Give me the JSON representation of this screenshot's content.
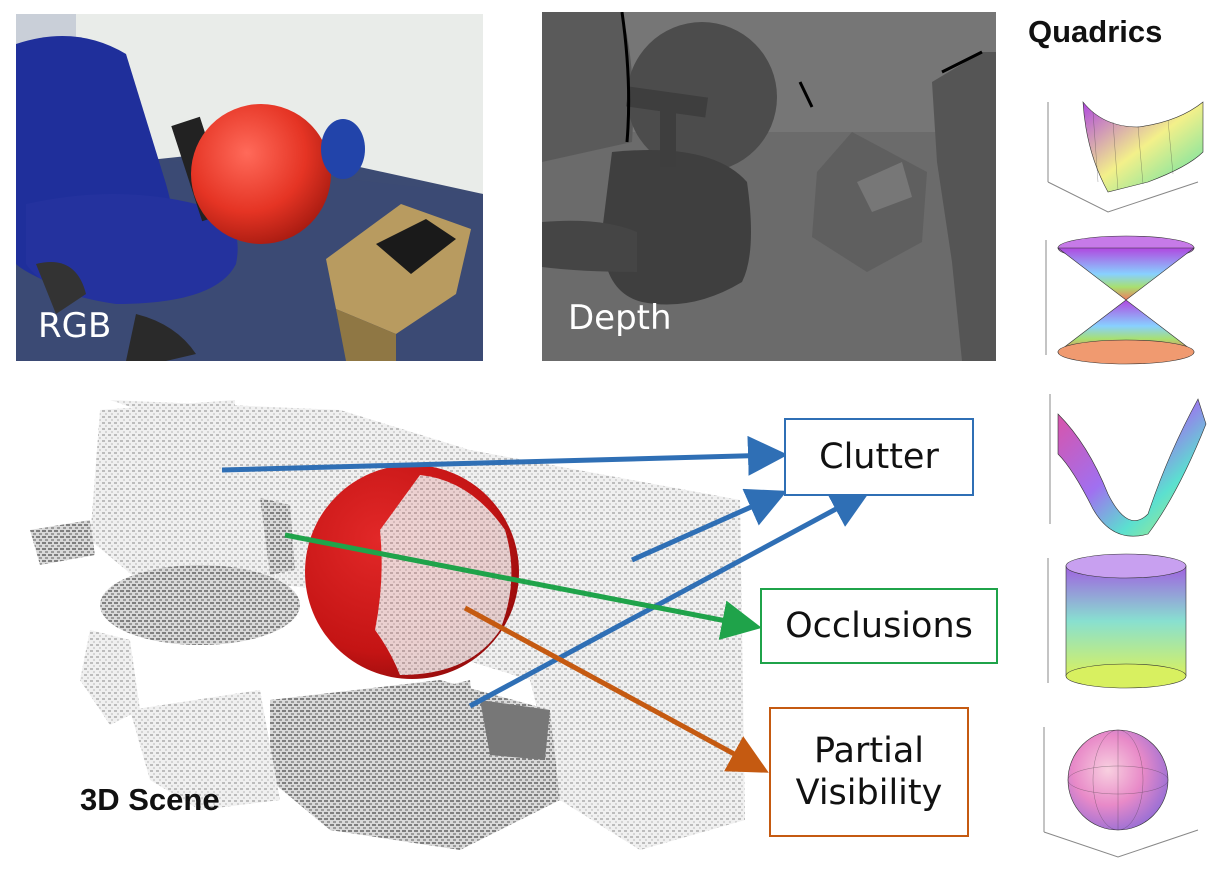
{
  "panels": {
    "rgb_label": "RGB",
    "depth_label": "Depth",
    "scene_label": "3D Scene",
    "quadrics_title": "Quadrics"
  },
  "callouts": {
    "clutter": "Clutter",
    "occlusions": "Occlusions",
    "partial_visibility": "Partial\nVisibility"
  },
  "colors": {
    "clutter": "#2f6fb5",
    "occlusions": "#1fa34a",
    "partial_visibility": "#c55a11",
    "ball": "#d01515"
  },
  "quadrics": [
    {
      "shape": "parabolic-cylinder"
    },
    {
      "shape": "double-cone"
    },
    {
      "shape": "hyperbolic-paraboloid"
    },
    {
      "shape": "cylinder"
    },
    {
      "shape": "sphere"
    }
  ]
}
